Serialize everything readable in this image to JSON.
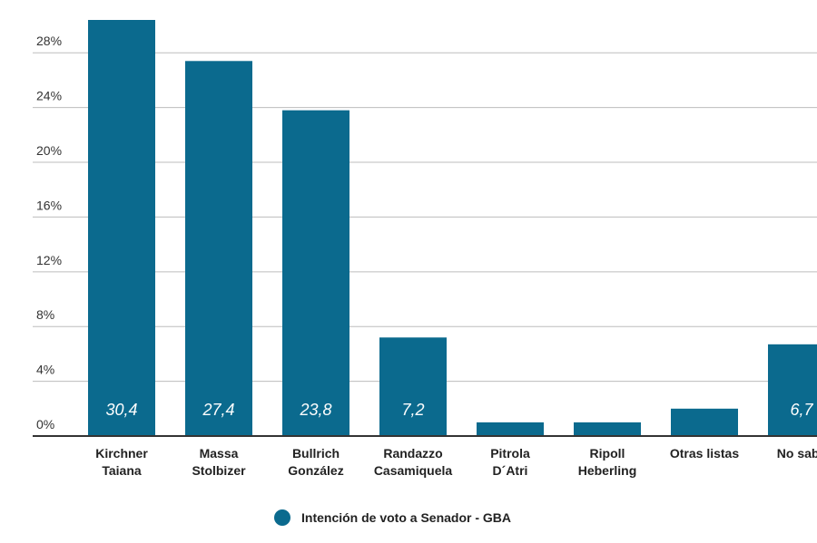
{
  "chart_data": {
    "type": "bar",
    "categories": [
      [
        "Kirchner",
        "Taiana"
      ],
      [
        "Massa",
        "Stolbizer"
      ],
      [
        "Bullrich",
        "González"
      ],
      [
        "Randazzo",
        "Casamiquela"
      ],
      [
        "Pitrola",
        "D´Atri"
      ],
      [
        "Ripoll",
        "Heberling"
      ],
      [
        "Otras listas"
      ],
      [
        "No sabe"
      ]
    ],
    "values": [
      30.4,
      27.4,
      23.8,
      7.2,
      1.0,
      1.0,
      2.0,
      6.7
    ],
    "data_labels": [
      "30,4",
      "27,4",
      "23,8",
      "7,2",
      "",
      "",
      "",
      "6,7"
    ],
    "yticks": [
      0,
      4,
      8,
      12,
      16,
      20,
      24,
      28
    ],
    "ytick_labels": [
      "0%",
      "4%",
      "8%",
      "12%",
      "16%",
      "20%",
      "24%",
      "28%"
    ],
    "ylim": [
      0,
      30.4
    ],
    "grid": true,
    "legend": {
      "position": "bottom",
      "entries": [
        {
          "label": "Intención de voto a Senador - GBA",
          "color": "#0b6a8e"
        }
      ]
    },
    "colors": {
      "bar": "#0b6a8e",
      "grid": "#bdbdbd",
      "axis": "#333333"
    }
  }
}
